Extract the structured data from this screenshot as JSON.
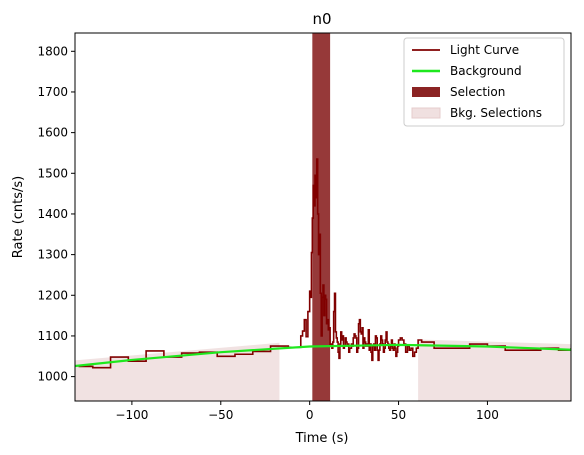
{
  "chart_data": {
    "type": "line",
    "title": "n0",
    "xlabel": "Time (s)",
    "ylabel": "Rate (cnts/s)",
    "xlim": [
      -132,
      147
    ],
    "ylim": [
      940,
      1845
    ],
    "xticks": [
      -100,
      -50,
      0,
      50,
      100
    ],
    "xtick_labels": [
      "−100",
      "−50",
      "0",
      "50",
      "100"
    ],
    "yticks": [
      1000,
      1100,
      1200,
      1300,
      1400,
      1500,
      1600,
      1700,
      1800
    ],
    "ytick_labels": [
      "1000",
      "1100",
      "1200",
      "1300",
      "1400",
      "1500",
      "1600",
      "1700",
      "1800"
    ],
    "grid": false,
    "legend_position": "top-right",
    "legend": [
      {
        "label": "Light Curve",
        "kind": "line",
        "color": "#800000"
      },
      {
        "label": "Background",
        "kind": "line",
        "color": "#1ee81e"
      },
      {
        "label": "Selection",
        "kind": "patch",
        "color": "#8b2323"
      },
      {
        "label": "Bkg. Selections",
        "kind": "patch",
        "color": "#f0e0e0"
      }
    ],
    "light_curve": {
      "name": "Light Curve",
      "color": "#800000",
      "edges": [
        -130,
        -122,
        -112,
        -102,
        -92,
        -82,
        -72,
        -62,
        -52,
        -42,
        -32,
        -22,
        -12,
        -5,
        -4,
        -3,
        -2,
        -1,
        0,
        0.5,
        1,
        1.5,
        2,
        2.5,
        3,
        3.5,
        4,
        4.5,
        5,
        5.5,
        6,
        6.5,
        7,
        7.5,
        8,
        8.5,
        9,
        9.5,
        10,
        10.5,
        11,
        11.5,
        12,
        12.5,
        13,
        13.5,
        14,
        14.5,
        15,
        15.5,
        16,
        16.5,
        17,
        17.5,
        18,
        18.5,
        19,
        19.5,
        20,
        20.5,
        21,
        21.5,
        22,
        22.5,
        23,
        23.5,
        24,
        24.5,
        25,
        25.5,
        26,
        26.5,
        27,
        27.5,
        28,
        28.5,
        29,
        29.5,
        30,
        30.5,
        31,
        31.5,
        32,
        32.5,
        33,
        33.5,
        34,
        34.5,
        35,
        35.5,
        36,
        36.5,
        37,
        37.5,
        38,
        38.5,
        39,
        39.5,
        40,
        40.5,
        41,
        41.5,
        42,
        42.5,
        43,
        43.5,
        44,
        44.5,
        45,
        45.5,
        46,
        46.5,
        47,
        47.5,
        48,
        48.5,
        49,
        49.5,
        50,
        51,
        52,
        53,
        54,
        55,
        56,
        57,
        58,
        59,
        60,
        61,
        63,
        70,
        80,
        90,
        100,
        110,
        120,
        130,
        140,
        147
      ],
      "values": [
        1025,
        1022,
        1048,
        1038,
        1063,
        1048,
        1058,
        1060,
        1050,
        1055,
        1062,
        1075,
        1072,
        1100,
        1112,
        1140,
        1098,
        1160,
        1210,
        1195,
        1305,
        1390,
        1470,
        1420,
        1495,
        1440,
        1535,
        1400,
        1300,
        1350,
        1205,
        1100,
        1195,
        1225,
        1150,
        1200,
        1190,
        1130,
        1140,
        1115,
        1120,
        1075,
        1080,
        1070,
        1085,
        1160,
        1205,
        1110,
        1095,
        1085,
        1060,
        1045,
        1080,
        1110,
        1090,
        1100,
        1070,
        1075,
        1095,
        1085,
        1075,
        1080,
        1060,
        1070,
        1070,
        1080,
        1075,
        1095,
        1105,
        1100,
        1095,
        1060,
        1070,
        1130,
        1140,
        1110,
        1105,
        1120,
        1070,
        1095,
        1085,
        1075,
        1080,
        1075,
        1115,
        1065,
        1080,
        1060,
        1040,
        1075,
        1080,
        1065,
        1100,
        1095,
        1065,
        1040,
        1065,
        1080,
        1100,
        1090,
        1080,
        1060,
        1070,
        1090,
        1110,
        1085,
        1080,
        1070,
        1065,
        1075,
        1090,
        1070,
        1065,
        1080,
        1070,
        1050,
        1060,
        1075,
        1090,
        1095,
        1090,
        1080,
        1060,
        1075,
        1065,
        1070,
        1050,
        1060,
        1070,
        1090,
        1085,
        1070,
        1070,
        1080,
        1075,
        1065,
        1065,
        1070,
        1065,
        1070
      ]
    },
    "background": {
      "name": "Background",
      "color": "#1ee81e",
      "x": [
        -132,
        -100,
        -50,
        0,
        50,
        100,
        147
      ],
      "y": [
        1026,
        1041,
        1060,
        1074,
        1078,
        1074,
        1066
      ]
    },
    "selection": {
      "name": "Selection",
      "color": "#8b2323",
      "x_range": [
        1.5,
        11.5
      ]
    },
    "bkg_selections": {
      "name": "Bkg. Selections",
      "color": "#f0e0e0",
      "ranges": [
        [
          -132,
          -17
        ],
        [
          61,
          147
        ]
      ]
    }
  }
}
